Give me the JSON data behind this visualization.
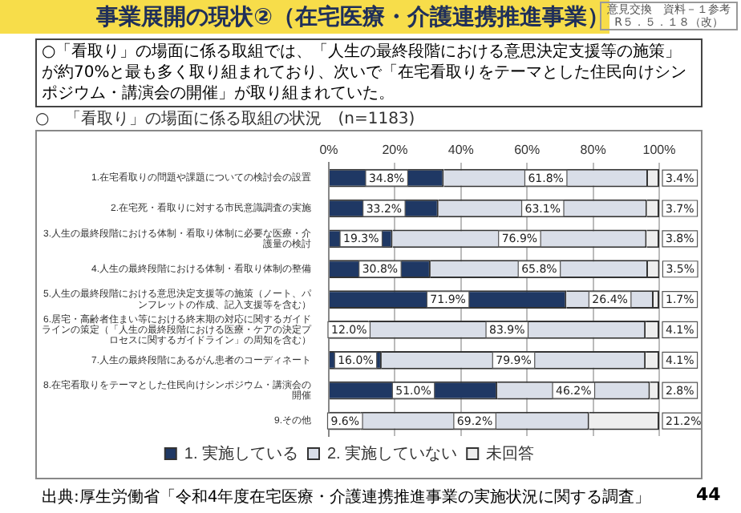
{
  "chart_data": {
    "type": "bar",
    "orientation": "horizontal",
    "stacked": true,
    "title": "事業展開の現状②（在宅医療・介護連携推進事業）",
    "subtitle": "○「看取り」の場面に係る取組では、「人生の最終段階における意思決定支援等の施策」が約70%と最も多く取り組まれており、次いで「在宅看取りをテーマとした住民向けシンポジウム・講演会の開催」が取り組まれていた。",
    "annotations": [
      "○　「看取り」の場面に係る取組の状況　(n=1183)",
      "出典:厚生労働省「令和4年度在宅医療・介護連携推進事業の実施状況に関する調査」",
      "44",
      "意見交換　資料－１参考",
      "R５．５．１８（改）"
    ],
    "categories": [
      "1.在宅看取りの問題や課題についての検討会の設置",
      "2.在宅死・看取りに対する市民意識調査の実施",
      "3.人生の最終段階における体制・看取り体制に必要な医療・介護量の検討",
      "4.人生の最終段階における体制・看取り体制の整備",
      "5.人生の最終段階における意思決定支援等の施策（ノート、パンフレットの作成、記入支援等を含む）",
      "6.居宅・高齢者住まい等における終末期の対応に関するガイドラインの策定（「人生の最終段階における医療・ケアの決定プロセスに関するガイドライン」の周知を含む）",
      "7.人生の最終段階にあるがん患者のコーディネート",
      "8.在宅看取りをテーマとした住民向けシンポジウム・講演会の開催",
      "9.その他"
    ],
    "series": [
      {
        "name": "1. 実施している",
        "color": "#1f3864",
        "values": [
          34.8,
          33.2,
          19.3,
          30.8,
          71.9,
          12.0,
          16.0,
          51.0,
          9.6
        ],
        "value_labels": [
          "34.8%",
          "33.2%",
          "19.3%",
          "30.8%",
          "71.9%",
          "12.0%",
          "16.0%",
          "51.0%",
          "9.6%"
        ]
      },
      {
        "name": "2. 実施していない",
        "color": "#d9dee8",
        "values": [
          61.8,
          63.1,
          76.9,
          65.8,
          26.4,
          83.9,
          79.9,
          46.2,
          69.2
        ],
        "value_labels": [
          "61.8%",
          "63.1%",
          "76.9%",
          "65.8%",
          "26.4%",
          "83.9%",
          "79.9%",
          "46.2%",
          "69.2%"
        ]
      },
      {
        "name": "未回答",
        "color": "#eeeeee",
        "values": [
          3.4,
          3.7,
          3.8,
          3.5,
          1.7,
          4.1,
          4.1,
          2.8,
          21.2
        ],
        "value_labels": [
          "3.4%",
          "3.7%",
          "3.8%",
          "3.5%",
          "1.7%",
          "4.1%",
          "4.1%",
          "2.8%",
          "21.2%"
        ]
      }
    ],
    "xlim": [
      0,
      100
    ],
    "xticks": [
      {
        "value": 0,
        "label": "0%"
      },
      {
        "value": 20,
        "label": "20%"
      },
      {
        "value": 40,
        "label": "40%"
      },
      {
        "value": 60,
        "label": "60%"
      },
      {
        "value": 80,
        "label": "80%"
      },
      {
        "value": 100,
        "label": "100%"
      }
    ],
    "grid": "x",
    "legend": "bottom"
  }
}
